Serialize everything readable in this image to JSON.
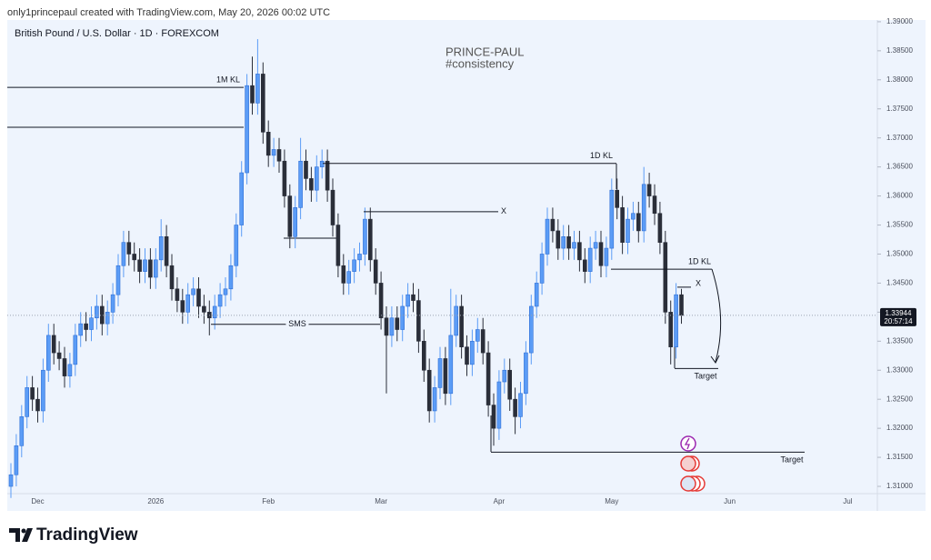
{
  "header": {
    "credit": "only1princepaul created with TradingView.com, May 20, 2026 00:02 UTC",
    "brand": "TradingView"
  },
  "chart_data": {
    "type": "candlestick",
    "symbol": "British Pound / U.S. Dollar · 1D · FOREXCOM",
    "watermark": [
      "PRINCE-PAUL",
      "#consistency"
    ],
    "countdown": "20:57:14",
    "up_color": "#5b9cf6",
    "down_color": "#2a2e39",
    "categories": [
      null,
      null,
      null,
      null,
      null,
      "Dec",
      null,
      null,
      null,
      null,
      null,
      null,
      null,
      null,
      null,
      null,
      null,
      null,
      null,
      null,
      null,
      null,
      null,
      null,
      null,
      null,
      null,
      "2026",
      null,
      null,
      null,
      null,
      null,
      null,
      null,
      null,
      null,
      null,
      null,
      null,
      null,
      null,
      null,
      null,
      null,
      null,
      null,
      null,
      "Feb",
      null,
      null,
      null,
      null,
      null,
      null,
      null,
      null,
      null,
      null,
      null,
      null,
      null,
      null,
      null,
      null,
      null,
      null,
      null,
      null,
      "Mar",
      null,
      null,
      null,
      null,
      null,
      null,
      null,
      null,
      null,
      null,
      null,
      null,
      null,
      null,
      null,
      null,
      null,
      null,
      null,
      null,
      null,
      "Apr",
      null,
      null,
      null,
      null,
      null,
      null,
      null,
      null,
      null,
      null,
      null,
      null,
      null,
      null,
      null,
      null,
      null,
      null,
      null,
      null,
      "May",
      null,
      null,
      null,
      null,
      null,
      null,
      null,
      null,
      null,
      null,
      null,
      null,
      null,
      null,
      null,
      null,
      null,
      null,
      null,
      null,
      null,
      "Jun",
      null,
      null,
      null,
      null,
      null,
      null,
      null,
      null,
      null,
      null,
      null,
      null,
      null,
      null,
      null,
      null,
      null,
      null,
      null,
      null,
      null,
      "Jul",
      null,
      null,
      null
    ],
    "open": [
      1.31,
      1.312,
      1.317,
      1.322,
      1.327,
      1.325,
      1.323,
      1.33,
      1.336,
      1.333,
      1.332,
      1.329,
      1.331,
      1.336,
      1.338,
      1.337,
      1.339,
      1.341,
      1.338,
      1.34,
      1.343,
      1.348,
      1.352,
      1.35,
      1.349,
      1.347,
      1.349,
      1.346,
      1.349,
      1.353,
      1.348,
      1.344,
      1.342,
      1.34,
      1.343,
      1.344,
      1.341,
      1.34,
      1.339,
      1.341,
      1.343,
      1.344,
      1.348,
      1.355,
      1.364,
      1.379,
      1.376,
      1.381,
      1.371,
      1.367,
      1.368,
      1.366,
      1.36,
      1.353,
      1.358,
      1.366,
      1.363,
      1.361,
      1.365,
      1.366,
      1.361,
      1.355,
      1.348,
      1.345,
      1.347,
      1.349,
      1.35,
      1.356,
      1.349,
      1.345,
      1.339,
      1.336,
      1.339,
      1.337,
      1.341,
      1.343,
      1.342,
      1.335,
      1.33,
      1.323,
      1.327,
      1.332,
      1.326,
      1.336,
      1.341,
      1.334,
      1.331,
      1.335,
      1.337,
      1.333,
      1.324,
      1.32,
      1.328,
      1.33,
      1.325,
      1.322,
      1.326,
      1.333,
      1.341,
      1.345,
      1.35,
      1.356,
      1.354,
      1.351,
      1.353,
      1.351,
      1.352,
      1.349,
      1.347,
      1.351,
      1.352,
      1.348,
      1.351,
      1.361,
      1.358,
      1.352,
      1.356,
      1.357,
      1.354,
      1.362,
      1.36,
      1.357,
      1.352,
      1.34,
      1.334,
      1.343,
      null,
      null,
      null,
      null,
      null,
      null,
      null,
      null,
      null,
      null,
      null,
      null,
      null,
      null,
      null,
      null,
      null,
      null,
      null,
      null,
      null,
      null,
      null,
      null,
      null,
      null,
      null,
      null,
      null,
      null,
      null,
      null,
      null,
      null
    ],
    "high": [
      1.314,
      1.319,
      1.324,
      1.329,
      1.329,
      1.327,
      1.332,
      1.338,
      1.338,
      1.335,
      1.334,
      1.333,
      1.338,
      1.34,
      1.34,
      1.341,
      1.343,
      1.343,
      1.342,
      1.345,
      1.35,
      1.354,
      1.354,
      1.352,
      1.351,
      1.351,
      1.351,
      1.351,
      1.356,
      1.355,
      1.35,
      1.346,
      1.344,
      1.345,
      1.346,
      1.346,
      1.343,
      1.342,
      1.343,
      1.345,
      1.346,
      1.35,
      1.357,
      1.366,
      1.381,
      1.384,
      1.387,
      1.383,
      1.373,
      1.37,
      1.37,
      1.368,
      1.362,
      1.36,
      1.37,
      1.368,
      1.365,
      1.367,
      1.368,
      1.368,
      1.363,
      1.357,
      1.35,
      1.349,
      1.351,
      1.352,
      1.358,
      1.358,
      1.351,
      1.347,
      1.341,
      1.341,
      1.341,
      1.343,
      1.345,
      1.345,
      1.344,
      1.337,
      1.332,
      1.329,
      1.334,
      1.334,
      1.344,
      1.343,
      1.343,
      1.336,
      1.337,
      1.339,
      1.339,
      1.335,
      1.326,
      1.33,
      1.332,
      1.332,
      1.327,
      1.328,
      1.335,
      1.343,
      1.347,
      1.352,
      1.358,
      1.358,
      1.356,
      1.355,
      1.355,
      1.354,
      1.354,
      1.351,
      1.353,
      1.354,
      1.354,
      1.353,
      1.363,
      1.363,
      1.36,
      1.358,
      1.359,
      1.359,
      1.365,
      1.364,
      1.362,
      1.359,
      1.354,
      1.342,
      1.345,
      1.344,
      null,
      null,
      null,
      null,
      null,
      null,
      null,
      null,
      null,
      null,
      null,
      null,
      null,
      null,
      null,
      null,
      null,
      null,
      null,
      null,
      null,
      null,
      null,
      null,
      null,
      null,
      null,
      null,
      null,
      null,
      null,
      null,
      null,
      null
    ],
    "low": [
      1.308,
      1.31,
      1.315,
      1.32,
      1.323,
      1.321,
      1.321,
      1.328,
      1.331,
      1.33,
      1.327,
      1.327,
      1.329,
      1.334,
      1.335,
      1.335,
      1.337,
      1.336,
      1.336,
      1.338,
      1.341,
      1.346,
      1.348,
      1.347,
      1.345,
      1.345,
      1.344,
      1.344,
      1.347,
      1.346,
      1.342,
      1.34,
      1.338,
      1.338,
      1.341,
      1.339,
      1.338,
      1.336,
      1.337,
      1.339,
      1.341,
      1.342,
      1.346,
      1.353,
      1.362,
      1.374,
      1.374,
      1.369,
      1.365,
      1.365,
      1.364,
      1.358,
      1.351,
      1.351,
      1.356,
      1.361,
      1.359,
      1.359,
      1.363,
      1.359,
      1.353,
      1.346,
      1.343,
      1.343,
      1.345,
      1.347,
      1.348,
      1.347,
      1.343,
      1.337,
      1.326,
      1.334,
      1.335,
      1.335,
      1.339,
      1.34,
      1.333,
      1.328,
      1.321,
      1.321,
      1.325,
      1.324,
      1.324,
      1.334,
      1.332,
      1.329,
      1.329,
      1.333,
      1.331,
      1.322,
      1.317,
      1.318,
      1.326,
      1.323,
      1.319,
      1.32,
      1.324,
      1.331,
      1.339,
      1.343,
      1.348,
      1.352,
      1.349,
      1.349,
      1.349,
      1.349,
      1.347,
      1.345,
      1.345,
      1.349,
      1.346,
      1.346,
      1.349,
      1.356,
      1.35,
      1.35,
      1.354,
      1.352,
      1.352,
      1.358,
      1.355,
      1.35,
      1.338,
      1.331,
      1.332,
      1.338,
      null,
      null,
      null,
      null,
      null,
      null,
      null,
      null,
      null,
      null,
      null,
      null,
      null,
      null,
      null,
      null,
      null,
      null,
      null,
      null,
      null,
      null,
      null,
      null,
      null,
      null,
      null,
      null,
      null,
      null,
      null,
      null,
      null,
      null
    ],
    "close": [
      1.312,
      1.317,
      1.322,
      1.327,
      1.325,
      1.323,
      1.33,
      1.336,
      1.333,
      1.332,
      1.329,
      1.331,
      1.336,
      1.338,
      1.337,
      1.339,
      1.341,
      1.338,
      1.34,
      1.343,
      1.348,
      1.352,
      1.35,
      1.349,
      1.347,
      1.349,
      1.346,
      1.349,
      1.353,
      1.348,
      1.344,
      1.342,
      1.34,
      1.343,
      1.344,
      1.341,
      1.34,
      1.339,
      1.341,
      1.343,
      1.344,
      1.348,
      1.355,
      1.364,
      1.379,
      1.376,
      1.381,
      1.371,
      1.367,
      1.368,
      1.366,
      1.36,
      1.353,
      1.358,
      1.366,
      1.363,
      1.361,
      1.365,
      1.366,
      1.361,
      1.355,
      1.348,
      1.345,
      1.347,
      1.349,
      1.35,
      1.356,
      1.349,
      1.345,
      1.339,
      1.336,
      1.339,
      1.337,
      1.341,
      1.343,
      1.342,
      1.335,
      1.33,
      1.323,
      1.327,
      1.332,
      1.326,
      1.336,
      1.341,
      1.334,
      1.331,
      1.335,
      1.337,
      1.333,
      1.324,
      1.32,
      1.328,
      1.33,
      1.325,
      1.322,
      1.326,
      1.333,
      1.341,
      1.345,
      1.35,
      1.356,
      1.354,
      1.351,
      1.353,
      1.351,
      1.352,
      1.349,
      1.347,
      1.351,
      1.352,
      1.348,
      1.351,
      1.361,
      1.358,
      1.352,
      1.356,
      1.357,
      1.354,
      1.362,
      1.36,
      1.357,
      1.352,
      1.34,
      1.334,
      1.343,
      1.33944,
      null,
      null,
      null,
      null,
      null,
      null,
      null,
      null,
      null,
      null,
      null,
      null,
      null,
      null,
      null,
      null,
      null,
      null,
      null,
      null,
      null,
      null,
      null,
      null,
      null,
      null,
      null,
      null,
      null,
      null,
      null,
      null,
      null,
      null
    ],
    "ylim": [
      1.30875,
      1.3903
    ],
    "yticks": [
      {
        "value": 1.31,
        "label": "1.31000"
      },
      {
        "value": 1.315,
        "label": "1.31500"
      },
      {
        "value": 1.32,
        "label": "1.32000"
      },
      {
        "value": 1.325,
        "label": "1.32500"
      },
      {
        "value": 1.33,
        "label": "1.33000"
      },
      {
        "value": 1.335,
        "label": "1.33500"
      },
      {
        "value": 1.34,
        "label": "1.34000"
      },
      {
        "value": 1.345,
        "label": "1.34500"
      },
      {
        "value": 1.35,
        "label": "1.35000"
      },
      {
        "value": 1.355,
        "label": "1.35500"
      },
      {
        "value": 1.36,
        "label": "1.36000"
      },
      {
        "value": 1.365,
        "label": "1.36500"
      },
      {
        "value": 1.37,
        "label": "1.37000"
      },
      {
        "value": 1.375,
        "label": "1.37500"
      },
      {
        "value": 1.38,
        "label": "1.38000"
      },
      {
        "value": 1.385,
        "label": "1.38500"
      },
      {
        "value": 1.39,
        "label": "1.39000"
      }
    ],
    "grid": false,
    "annotations": [
      {
        "label": "1M KL",
        "price": 1.3787
      },
      {
        "label": "1D KL",
        "price": 1.3656
      },
      {
        "label": "X",
        "price": 1.3573
      },
      {
        "label": "SMS",
        "price": 1.3379
      },
      {
        "label": "1D KL",
        "price": 1.3474
      },
      {
        "label": "X",
        "price": 1.3443
      },
      {
        "label": "Target",
        "price": 1.3303
      },
      {
        "label": "Target",
        "price": 1.3159
      }
    ]
  }
}
